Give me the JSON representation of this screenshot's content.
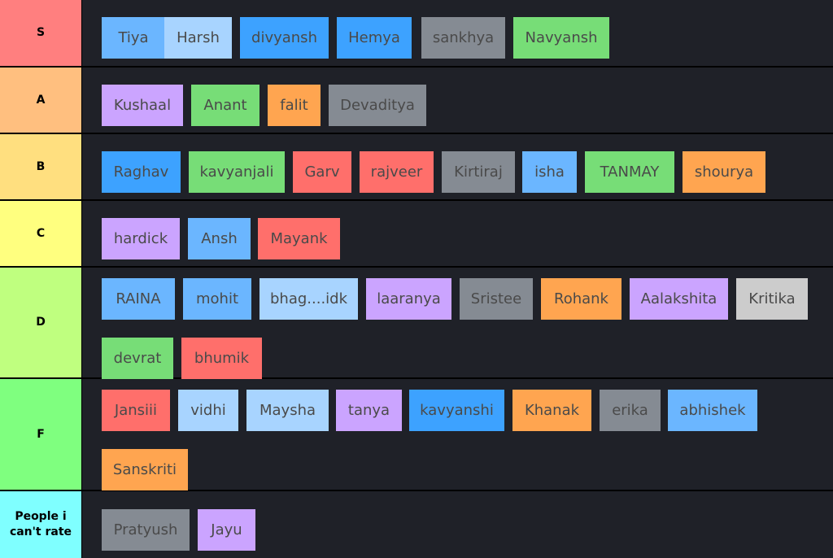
{
  "colors": {
    "blue_light": "#6bb6ff",
    "blue_pale": "#a8d4ff",
    "blue": "#3da2ff",
    "gray": "#858b93",
    "green": "#77dd77",
    "purple": "#cba4ff",
    "orange": "#ffa550",
    "red": "#ff6f6b",
    "silver": "#cccccc",
    "cell_background": "#1f2128"
  },
  "tiers": [
    {
      "label": "S",
      "color": "#ff7f7f",
      "items": [
        {
          "name": "Tiya",
          "color": "#6bb6ff"
        },
        {
          "name": "Harsh",
          "color": "#a8d4ff"
        },
        {
          "name": "divyansh",
          "color": "#3da2ff"
        },
        {
          "name": "Hemya",
          "color": "#3da2ff"
        },
        {
          "name": "sankhya",
          "color": "#858b93"
        },
        {
          "name": "Navyansh",
          "color": "#77dd77"
        }
      ]
    },
    {
      "label": "A",
      "color": "#ffbf7f",
      "items": [
        {
          "name": "Kushaal",
          "color": "#cba4ff"
        },
        {
          "name": "Anant",
          "color": "#77dd77"
        },
        {
          "name": "falit",
          "color": "#ffa550"
        },
        {
          "name": "Devaditya",
          "color": "#858b93"
        }
      ]
    },
    {
      "label": "B",
      "color": "#ffdf7f",
      "items": [
        {
          "name": "Raghav",
          "color": "#3da2ff"
        },
        {
          "name": "kavyanjali",
          "color": "#77dd77"
        },
        {
          "name": "Garv",
          "color": "#ff6f6b"
        },
        {
          "name": "rajveer",
          "color": "#ff6f6b"
        },
        {
          "name": "Kirtiraj",
          "color": "#858b93"
        },
        {
          "name": "isha",
          "color": "#6bb6ff"
        },
        {
          "name": "TANMAY",
          "color": "#77dd77"
        },
        {
          "name": "shourya",
          "color": "#ffa550"
        }
      ]
    },
    {
      "label": "C",
      "color": "#ffff7f",
      "items": [
        {
          "name": "hardick",
          "color": "#cba4ff"
        },
        {
          "name": "Ansh",
          "color": "#6bb6ff"
        },
        {
          "name": "Mayank",
          "color": "#ff6f6b"
        }
      ]
    },
    {
      "label": "D",
      "color": "#bfff7f",
      "items": [
        {
          "name": "RAINA",
          "color": "#6bb6ff"
        },
        {
          "name": "mohit",
          "color": "#6bb6ff"
        },
        {
          "name": "bhag....idk",
          "color": "#a8d4ff"
        },
        {
          "name": "laaranya",
          "color": "#cba4ff"
        },
        {
          "name": "Sristee",
          "color": "#858b93"
        },
        {
          "name": "Rohank",
          "color": "#ffa550"
        },
        {
          "name": "Aalakshita",
          "color": "#cba4ff"
        },
        {
          "name": "Kritika",
          "color": "#cccccc"
        },
        {
          "name": "devrat",
          "color": "#77dd77"
        },
        {
          "name": "bhumik",
          "color": "#ff6f6b"
        }
      ]
    },
    {
      "label": "F",
      "color": "#7fff7f",
      "items": [
        {
          "name": "Jansiii",
          "color": "#ff6f6b"
        },
        {
          "name": "vidhi",
          "color": "#a8d4ff"
        },
        {
          "name": "Maysha",
          "color": "#a8d4ff"
        },
        {
          "name": "tanya",
          "color": "#cba4ff"
        },
        {
          "name": "kavyanshi",
          "color": "#3da2ff"
        },
        {
          "name": "Khanak",
          "color": "#ffa550"
        },
        {
          "name": "erika",
          "color": "#858b93"
        },
        {
          "name": "abhishek",
          "color": "#6bb6ff"
        },
        {
          "name": "Sanskriti",
          "color": "#ffa550"
        }
      ]
    },
    {
      "label": "People i can't rate",
      "color": "#7fffff",
      "items": [
        {
          "name": "Pratyush",
          "color": "#858b93"
        },
        {
          "name": "Jayu",
          "color": "#cba4ff"
        }
      ]
    }
  ]
}
